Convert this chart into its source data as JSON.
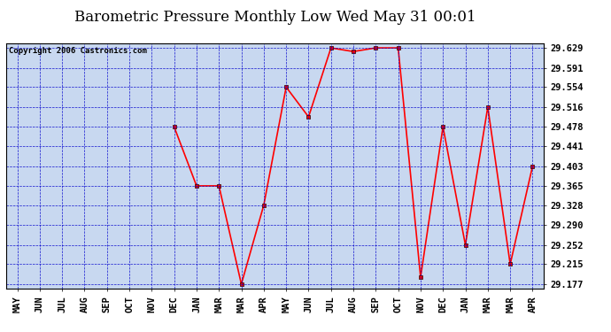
{
  "title": "Barometric Pressure Monthly Low Wed May 31 00:01",
  "copyright": "Copyright 2006 Castronics.com",
  "x_labels": [
    "MAY",
    "JUN",
    "JUL",
    "AUG",
    "SEP",
    "OCT",
    "NOV",
    "DEC",
    "JAN",
    "MAR",
    "MAR",
    "APR",
    "MAY",
    "JUN",
    "JUL",
    "AUG",
    "SEP",
    "OCT",
    "NOV",
    "DEC",
    "JAN",
    "MAR",
    "MAR",
    "APR"
  ],
  "y_values": [
    null,
    null,
    null,
    null,
    null,
    null,
    null,
    29.478,
    29.365,
    29.365,
    29.177,
    29.328,
    29.554,
    29.497,
    29.629,
    29.622,
    29.629,
    29.629,
    29.19,
    29.478,
    29.252,
    29.516,
    29.215,
    29.403
  ],
  "ylim_min": 29.177,
  "ylim_max": 29.629,
  "yticks": [
    29.629,
    29.591,
    29.554,
    29.516,
    29.478,
    29.441,
    29.403,
    29.365,
    29.328,
    29.29,
    29.252,
    29.215,
    29.177
  ],
  "bg_color": "#c8d8f0",
  "line_color": "red",
  "grid_color": "#0000cc",
  "title_fontsize": 12,
  "tick_fontsize": 7.5,
  "copyright_fontsize": 6.5
}
